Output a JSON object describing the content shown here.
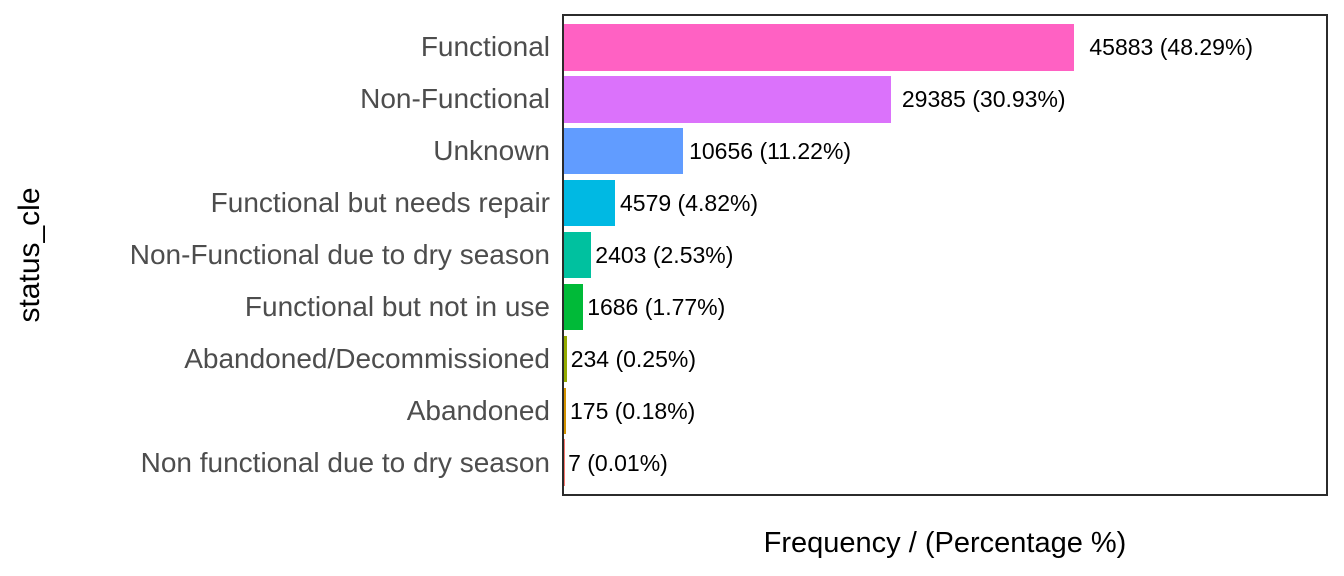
{
  "chart_data": {
    "type": "bar",
    "orientation": "horizontal",
    "xlabel": "Frequency / (Percentage %)",
    "ylabel": "status_cle",
    "categories": [
      "Functional",
      "Non-Functional",
      "Unknown",
      "Functional but needs repair",
      "Non-Functional due to dry season",
      "Functional but not in use",
      "Abandoned/Decommissioned",
      "Abandoned",
      "Non functional due to dry season"
    ],
    "values": [
      45883,
      29385,
      10656,
      4579,
      2403,
      1686,
      234,
      175,
      7
    ],
    "percentages": [
      48.29,
      30.93,
      11.22,
      4.82,
      2.53,
      1.77,
      0.25,
      0.18,
      0.01
    ],
    "bar_labels": [
      "45883 (48.29%)",
      "29385 (30.93%)",
      "10656 (11.22%)",
      "4579 (4.82%)",
      "2403 (2.53%)",
      "1686 (1.77%)",
      "234 (0.25%)",
      "175 (0.18%)",
      "7 (0.01%)"
    ],
    "bar_colors": [
      "#FF61C3",
      "#DB72FB",
      "#619CFF",
      "#00B9E3",
      "#00C19F",
      "#00BA38",
      "#93AA00",
      "#D39200",
      "#F8766D"
    ],
    "xlim": [
      0,
      68500
    ],
    "grid": false,
    "legend": false,
    "axis_text_color": "#4d4d4d",
    "axis_title_color": "#000000",
    "value_label_color": "#000000",
    "panel_border_color": "#2b2b2b",
    "background_color": "#ffffff"
  }
}
